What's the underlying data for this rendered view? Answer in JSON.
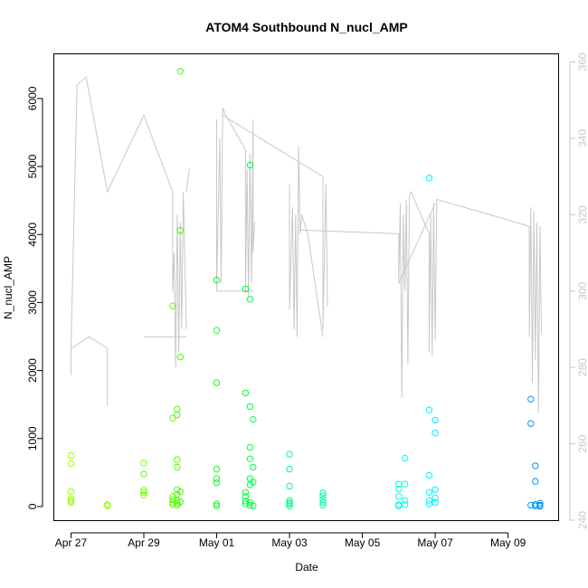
{
  "chart_data": {
    "type": "scatter",
    "title": "ATOM4 Southbound N_nucl_AMP",
    "xlabel": "Date",
    "ylabel": "N_nucl_AMP",
    "xlim": [
      "2016-04-26T13:00",
      "2016-05-10T09:00"
    ],
    "ylim": [
      -200,
      6650
    ],
    "y2lim": [
      240,
      362
    ],
    "x_ticks": [
      {
        "date": "2016-04-27",
        "label": "Apr 27"
      },
      {
        "date": "2016-04-29",
        "label": "Apr 29"
      },
      {
        "date": "2016-05-01",
        "label": "May 01"
      },
      {
        "date": "2016-05-03",
        "label": "May 03"
      },
      {
        "date": "2016-05-05",
        "label": "May 05"
      },
      {
        "date": "2016-05-07",
        "label": "May 07"
      },
      {
        "date": "2016-05-09",
        "label": "May 09"
      }
    ],
    "y_ticks": [
      "0",
      "1000",
      "2000",
      "3000",
      "4000",
      "5000",
      "6000"
    ],
    "y2_ticks": [
      "240",
      "260",
      "280",
      "300",
      "320",
      "340",
      "360"
    ],
    "series": [
      {
        "axis": "left",
        "style": "points",
        "points": [
          [
            "2016-04-27T00:00",
            750,
            "#a0ff00"
          ],
          [
            "2016-04-27T00:00",
            630,
            "#a0ff00"
          ],
          [
            "2016-04-27T00:00",
            220,
            "#a0ff00"
          ],
          [
            "2016-04-27T00:00",
            110,
            "#a0ff00"
          ],
          [
            "2016-04-27T00:00",
            80,
            "#a0ff00"
          ],
          [
            "2016-04-27T00:00",
            60,
            "#a0ff00"
          ],
          [
            "2016-04-28T00:00",
            30,
            "#90ff00"
          ],
          [
            "2016-04-28T00:00",
            10,
            "#90ff00"
          ],
          [
            "2016-04-29T00:00",
            640,
            "#70ff00"
          ],
          [
            "2016-04-29T00:00",
            480,
            "#70ff00"
          ],
          [
            "2016-04-29T00:00",
            240,
            "#70ff00"
          ],
          [
            "2016-04-29T00:00",
            210,
            "#70ff00"
          ],
          [
            "2016-04-29T00:00",
            170,
            "#70ff00"
          ],
          [
            "2016-04-29T19:00",
            2950,
            "#60ff00"
          ],
          [
            "2016-04-29T19:00",
            1300,
            "#60ff00"
          ],
          [
            "2016-04-29T19:00",
            150,
            "#60ff00"
          ],
          [
            "2016-04-29T19:00",
            100,
            "#60ff00"
          ],
          [
            "2016-04-29T19:00",
            60,
            "#60ff00"
          ],
          [
            "2016-04-29T19:00",
            30,
            "#60ff00"
          ],
          [
            "2016-04-29T22:00",
            1430,
            "#50ff00"
          ],
          [
            "2016-04-29T22:00",
            1350,
            "#50ff00"
          ],
          [
            "2016-04-29T22:00",
            690,
            "#50ff00"
          ],
          [
            "2016-04-29T22:00",
            580,
            "#50ff00"
          ],
          [
            "2016-04-29T22:00",
            250,
            "#50ff00"
          ],
          [
            "2016-04-29T22:00",
            180,
            "#50ff00"
          ],
          [
            "2016-04-29T22:00",
            90,
            "#50ff00"
          ],
          [
            "2016-04-29T22:00",
            50,
            "#50ff00"
          ],
          [
            "2016-04-29T22:00",
            20,
            "#50ff00"
          ],
          [
            "2016-04-30T00:00",
            6400,
            "#40ff00"
          ],
          [
            "2016-04-30T00:00",
            4060,
            "#40ff00"
          ],
          [
            "2016-04-30T00:00",
            2200,
            "#40ff00"
          ],
          [
            "2016-04-30T00:00",
            220,
            "#40ff00"
          ],
          [
            "2016-04-30T00:00",
            70,
            "#40ff00"
          ],
          [
            "2016-05-01T00:00",
            3330,
            "#10ff20"
          ],
          [
            "2016-05-01T00:00",
            2590,
            "#10ff20"
          ],
          [
            "2016-05-01T00:00",
            1820,
            "#10ff20"
          ],
          [
            "2016-05-01T00:00",
            550,
            "#10ff20"
          ],
          [
            "2016-05-01T00:00",
            410,
            "#10ff20"
          ],
          [
            "2016-05-01T00:00",
            350,
            "#10ff20"
          ],
          [
            "2016-05-01T00:00",
            40,
            "#10ff20"
          ],
          [
            "2016-05-01T00:00",
            10,
            "#10ff20"
          ],
          [
            "2016-05-01T19:00",
            3200,
            "#00ff30"
          ],
          [
            "2016-05-01T19:00",
            1670,
            "#00ff30"
          ],
          [
            "2016-05-01T19:00",
            210,
            "#00ff30"
          ],
          [
            "2016-05-01T19:00",
            150,
            "#00ff30"
          ],
          [
            "2016-05-01T19:00",
            80,
            "#00ff30"
          ],
          [
            "2016-05-01T19:00",
            40,
            "#00ff30"
          ],
          [
            "2016-05-01T22:00",
            5020,
            "#00ff40"
          ],
          [
            "2016-05-01T22:00",
            3050,
            "#00ff40"
          ],
          [
            "2016-05-01T22:00",
            1470,
            "#00ff40"
          ],
          [
            "2016-05-01T22:00",
            870,
            "#00ff40"
          ],
          [
            "2016-05-01T22:00",
            700,
            "#00ff40"
          ],
          [
            "2016-05-01T22:00",
            410,
            "#00ff40"
          ],
          [
            "2016-05-01T22:00",
            320,
            "#00ff40"
          ],
          [
            "2016-05-01T22:00",
            60,
            "#00ff40"
          ],
          [
            "2016-05-01T22:00",
            20,
            "#00ff40"
          ],
          [
            "2016-05-02T00:00",
            1280,
            "#00ff50"
          ],
          [
            "2016-05-02T00:00",
            580,
            "#00ff50"
          ],
          [
            "2016-05-02T00:00",
            360,
            "#00ff50"
          ],
          [
            "2016-05-02T00:00",
            10,
            "#00ff50"
          ],
          [
            "2016-05-03T00:00",
            770,
            "#00ff80"
          ],
          [
            "2016-05-03T00:00",
            550,
            "#00ff80"
          ],
          [
            "2016-05-03T00:00",
            300,
            "#00ff80"
          ],
          [
            "2016-05-03T00:00",
            90,
            "#00ff80"
          ],
          [
            "2016-05-03T00:00",
            60,
            "#00ff80"
          ],
          [
            "2016-05-03T00:00",
            40,
            "#00ff80"
          ],
          [
            "2016-05-03T00:00",
            10,
            "#00ff80"
          ],
          [
            "2016-05-03T22:00",
            200,
            "#00ff9f"
          ],
          [
            "2016-05-03T22:00",
            160,
            "#00ff9f"
          ],
          [
            "2016-05-03T22:00",
            100,
            "#00ff9f"
          ],
          [
            "2016-05-03T22:00",
            60,
            "#00ff9f"
          ],
          [
            "2016-05-03T22:00",
            20,
            "#00ff9f"
          ],
          [
            "2016-05-06T00:00",
            330,
            "#00ffdd"
          ],
          [
            "2016-05-06T00:00",
            260,
            "#00ffdd"
          ],
          [
            "2016-05-06T00:00",
            150,
            "#00ffdd"
          ],
          [
            "2016-05-06T00:00",
            30,
            "#00ffdd"
          ],
          [
            "2016-05-06T00:00",
            10,
            "#00ffdd"
          ],
          [
            "2016-05-06T04:00",
            710,
            "#00ffe8"
          ],
          [
            "2016-05-06T04:00",
            330,
            "#00ffe8"
          ],
          [
            "2016-05-06T04:00",
            90,
            "#00ffe8"
          ],
          [
            "2016-05-06T04:00",
            30,
            "#00ffe8"
          ],
          [
            "2016-05-06T20:00",
            4830,
            "#00f5ff"
          ],
          [
            "2016-05-06T20:00",
            1420,
            "#00f5ff"
          ],
          [
            "2016-05-06T20:00",
            460,
            "#00f5ff"
          ],
          [
            "2016-05-06T20:00",
            210,
            "#00f5ff"
          ],
          [
            "2016-05-06T20:00",
            90,
            "#00f5ff"
          ],
          [
            "2016-05-06T20:00",
            40,
            "#00f5ff"
          ],
          [
            "2016-05-07T00:00",
            1270,
            "#00eeff"
          ],
          [
            "2016-05-07T00:00",
            1080,
            "#00eeff"
          ],
          [
            "2016-05-07T00:00",
            250,
            "#00eeff"
          ],
          [
            "2016-05-07T00:00",
            130,
            "#00eeff"
          ],
          [
            "2016-05-07T00:00",
            60,
            "#00eeff"
          ],
          [
            "2016-05-09T15:00",
            1580,
            "#0098ff"
          ],
          [
            "2016-05-09T15:00",
            1220,
            "#0098ff"
          ],
          [
            "2016-05-09T15:00",
            20,
            "#0098ff"
          ],
          [
            "2016-05-09T18:00",
            600,
            "#0095ff"
          ],
          [
            "2016-05-09T18:00",
            370,
            "#0095ff"
          ],
          [
            "2016-05-09T18:00",
            30,
            "#0095ff"
          ],
          [
            "2016-05-09T18:00",
            10,
            "#0095ff"
          ],
          [
            "2016-05-09T21:00",
            50,
            "#0090ff"
          ],
          [
            "2016-05-09T21:00",
            20,
            "#0090ff"
          ],
          [
            "2016-05-09T21:00",
            5,
            "#0090ff"
          ]
        ]
      },
      {
        "axis": "right",
        "style": "line",
        "color": "#c8c8c8",
        "segments": [
          [
            [
              "2016-04-27T00:00",
              278
            ],
            [
              "2016-04-27T00:00",
              285
            ],
            [
              "2016-04-27T04:00",
              354
            ],
            [
              "2016-04-27T10:00",
              356
            ],
            [
              "2016-04-28T00:00",
              326
            ],
            [
              "2016-04-29T00:00",
              346
            ],
            [
              "2016-04-29T19:00",
              326
            ],
            [
              "2016-04-29T19:00",
              300
            ],
            [
              "2016-04-29T20:00",
              310
            ],
            [
              "2016-04-29T21:00",
              280
            ],
            [
              "2016-04-29T22:00",
              320
            ],
            [
              "2016-04-29T23:00",
              284
            ],
            [
              "2016-04-30T00:00",
              318
            ],
            [
              "2016-04-30T01:00",
              290
            ],
            [
              "2016-04-30T02:00",
              326
            ],
            [
              "2016-04-30T04:00",
              290
            ]
          ],
          [
            [
              "2016-04-27T00:00",
              285
            ],
            [
              "2016-04-27T12:00",
              288
            ],
            [
              "2016-04-28T00:00",
              285
            ],
            [
              "2016-04-28T00:00",
              270
            ]
          ],
          [
            [
              "2016-04-29T00:00",
              288
            ],
            [
              "2016-04-30T04:00",
              288
            ]
          ],
          [
            [
              "2016-04-30T04:00",
              326
            ],
            [
              "2016-04-30T06:00",
              332
            ]
          ],
          [
            [
              "2016-05-01T00:00",
              345
            ],
            [
              "2016-05-01T00:00",
              300
            ],
            [
              "2016-05-01T02:00",
              340
            ],
            [
              "2016-05-01T03:00",
              302
            ],
            [
              "2016-05-01T04:00",
              348
            ],
            [
              "2016-05-01T06:00",
              346
            ],
            [
              "2016-05-01T19:00",
              337
            ],
            [
              "2016-05-01T19:00",
              300
            ],
            [
              "2016-05-01T20:00",
              332
            ],
            [
              "2016-05-01T21:00",
              298
            ],
            [
              "2016-05-01T22:00",
              336
            ],
            [
              "2016-05-01T23:00",
              302
            ],
            [
              "2016-05-02T00:00",
              345
            ],
            [
              "2016-05-02T00:00",
              310
            ],
            [
              "2016-05-02T01:00",
              318
            ]
          ],
          [
            [
              "2016-05-01T04:00",
              346
            ],
            [
              "2016-05-03T22:00",
              330
            ],
            [
              "2016-05-03T22:00",
              290
            ],
            [
              "2016-05-04T00:00",
              328
            ],
            [
              "2016-05-04T01:00",
              296
            ]
          ],
          [
            [
              "2016-05-01T00:00",
              300
            ],
            [
              "2016-05-02T00:00",
              300
            ]
          ],
          [
            [
              "2016-05-03T00:00",
              328
            ],
            [
              "2016-05-03T00:00",
              295
            ],
            [
              "2016-05-03T02:00",
              322
            ],
            [
              "2016-05-03T03:00",
              290
            ],
            [
              "2016-05-03T04:00",
              320
            ],
            [
              "2016-05-03T05:00",
              288
            ],
            [
              "2016-05-03T06:00",
              338
            ],
            [
              "2016-05-03T07:00",
              315
            ],
            [
              "2016-05-03T08:00",
              320
            ],
            [
              "2016-05-03T12:00",
              315
            ],
            [
              "2016-05-03T22:00",
              288
            ]
          ],
          [
            [
              "2016-05-03T06:00",
              316
            ],
            [
              "2016-05-06T00:00",
              315
            ],
            [
              "2016-05-06T00:00",
              302
            ],
            [
              "2016-05-06T01:00",
              323
            ],
            [
              "2016-05-06T02:00",
              272
            ],
            [
              "2016-05-06T03:00",
              320
            ],
            [
              "2016-05-06T04:00",
              300
            ],
            [
              "2016-05-06T05:00",
              324
            ],
            [
              "2016-05-06T06:00",
              281
            ],
            [
              "2016-05-06T07:00",
              325
            ],
            [
              "2016-05-06T08:00",
              326
            ],
            [
              "2016-05-06T20:00",
              315
            ],
            [
              "2016-05-06T20:00",
              284
            ],
            [
              "2016-05-06T21:00",
              320
            ],
            [
              "2016-05-06T22:00",
              283
            ],
            [
              "2016-05-06T23:00",
              323
            ],
            [
              "2016-05-07T00:00",
              287
            ],
            [
              "2016-05-07T01:00",
              324
            ],
            [
              "2016-05-09T14:00",
              317
            ],
            [
              "2016-05-09T14:00",
              288
            ],
            [
              "2016-05-09T15:00",
              322
            ],
            [
              "2016-05-09T16:00",
              276
            ],
            [
              "2016-05-09T17:00",
              321
            ],
            [
              "2016-05-09T18:00",
              282
            ],
            [
              "2016-05-09T19:00",
              318
            ],
            [
              "2016-05-09T20:00",
              268
            ],
            [
              "2016-05-09T21:00",
              317
            ],
            [
              "2016-05-09T22:00",
              289
            ]
          ],
          [
            [
              "2016-05-06T00:00",
              302
            ],
            [
              "2016-05-07T00:00",
              323
            ]
          ]
        ]
      }
    ]
  }
}
